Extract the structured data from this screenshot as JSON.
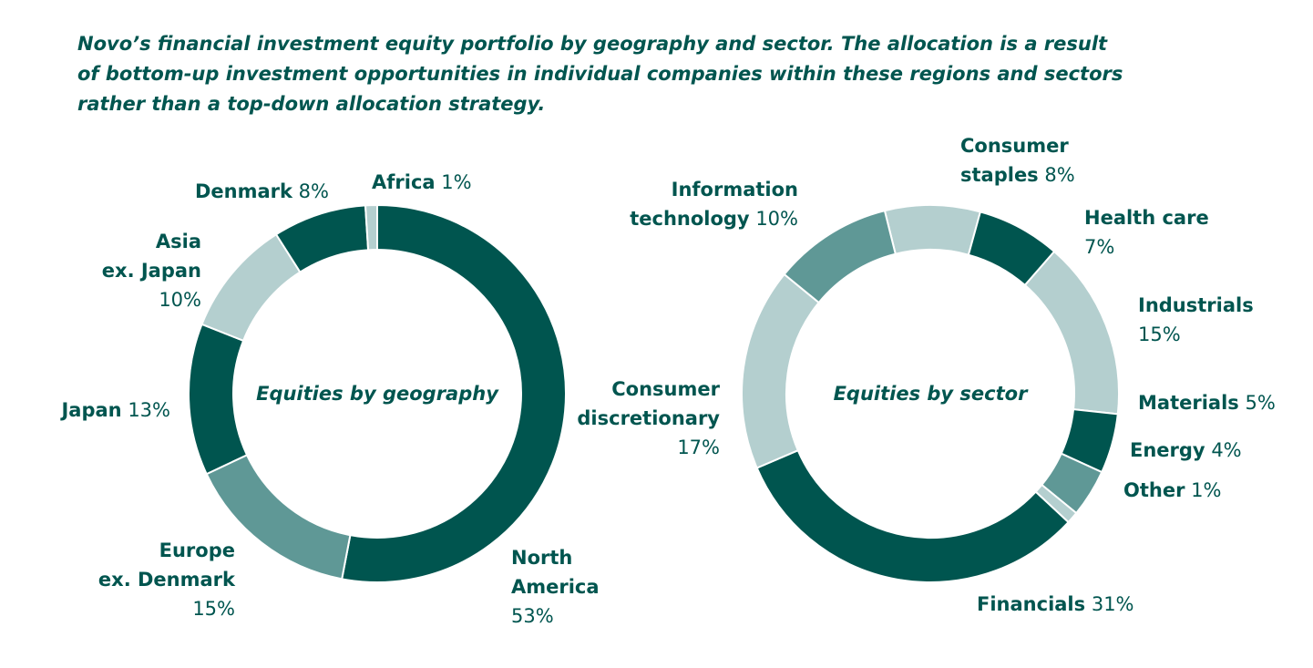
{
  "title": "Novo’s financial investment equity portfolio by geography and sector. The allocation is a result\nof bottom-up investment opportunities in individual companies within these regions and sectors\nrather than a top-down allocation strategy.",
  "chart_data": [
    {
      "type": "donut",
      "center_label": "Equities by geography",
      "categories": [
        "North\nAmerica",
        "Europe\nex. Denmark",
        "Japan",
        "Asia\nex. Japan",
        "Denmark",
        "Africa"
      ],
      "values": [
        53,
        15,
        13,
        10,
        8,
        1
      ],
      "value_labels": [
        "53%",
        "15%",
        "13%",
        "10%",
        "8%",
        "1%"
      ],
      "colors": [
        "#00554f",
        "#5f9896",
        "#00554f",
        "#b4cfcf",
        "#00554f",
        "#b4cfcf"
      ]
    },
    {
      "type": "donut",
      "center_label": "Equities by sector",
      "categories": [
        "Consumer\nstaples",
        "Health care",
        "Industrials",
        "Materials",
        "Energy",
        "Other",
        "Financials",
        "Consumer\ndiscretionary",
        "Information\ntechnology"
      ],
      "values": [
        8,
        7,
        15,
        5,
        4,
        1,
        31,
        17,
        10
      ],
      "value_labels": [
        "8%",
        "7%",
        "15%",
        "5%",
        "4%",
        "1%",
        "31%",
        "17%",
        "10%"
      ],
      "colors": [
        "#b4cfcf",
        "#00554f",
        "#b4cfcf",
        "#00554f",
        "#5f9896",
        "#b4cfcf",
        "#00554f",
        "#b4cfcf",
        "#5f9896"
      ]
    }
  ]
}
